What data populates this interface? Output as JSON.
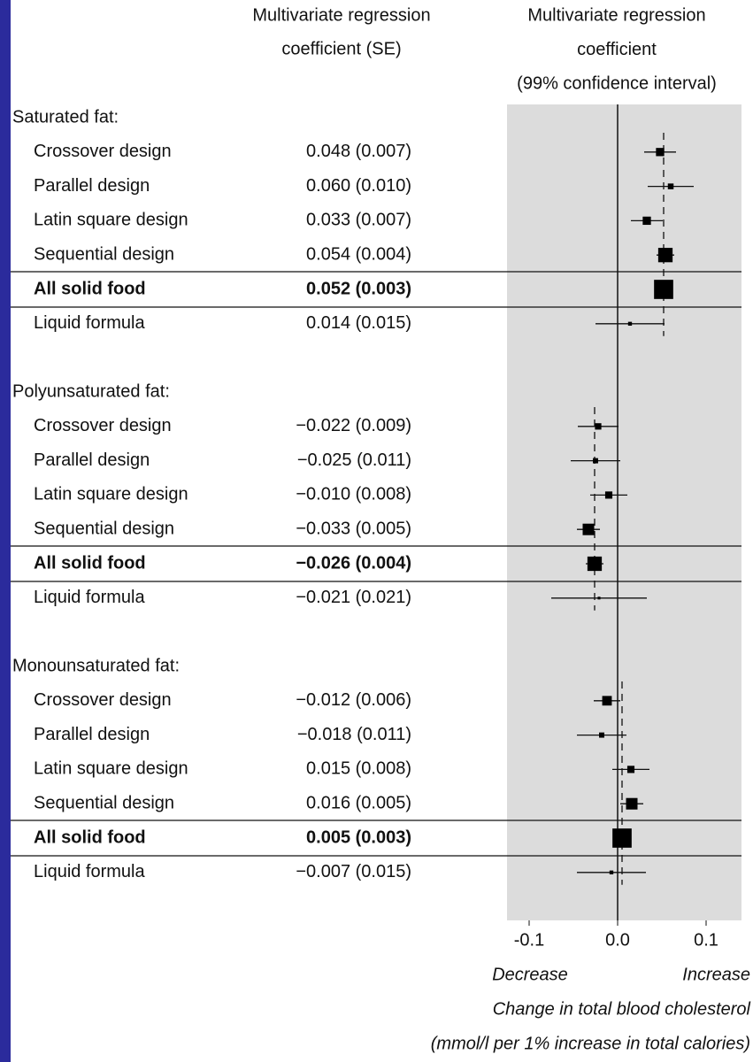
{
  "chart_data": {
    "type": "forest",
    "header_left": [
      "Multivariate regression",
      "coefficient (SE)"
    ],
    "header_right": [
      "Multivariate regression",
      "coefficient",
      "(99% confidence interval)"
    ],
    "bold_row": 4,
    "groups": [
      {
        "name": "Saturated fat:",
        "categories": [
          "Crossover design",
          "Parallel design",
          "Latin square design",
          "Sequential design",
          "All solid food",
          "Liquid formula"
        ],
        "values": [
          0.048,
          0.06,
          0.033,
          0.054,
          0.052,
          0.014
        ],
        "se": [
          0.007,
          0.01,
          0.007,
          0.004,
          0.003,
          0.015
        ],
        "value_labels": [
          "0.048 (0.007)",
          "0.060 (0.010)",
          "0.033 (0.007)",
          "0.054 (0.004)",
          "0.052 (0.003)",
          "0.014 (0.015)"
        ],
        "ci_low": [
          0.03,
          0.034,
          0.015,
          0.044,
          0.044,
          -0.025
        ],
        "ci_high": [
          0.066,
          0.086,
          0.051,
          0.064,
          0.06,
          0.053
        ]
      },
      {
        "name": "Polyunsaturated fat:",
        "categories": [
          "Crossover design",
          "Parallel design",
          "Latin square design",
          "Sequential design",
          "All solid food",
          "Liquid formula"
        ],
        "values": [
          -0.022,
          -0.025,
          -0.01,
          -0.033,
          -0.026,
          -0.021
        ],
        "se": [
          0.009,
          0.011,
          0.008,
          0.005,
          0.004,
          0.021
        ],
        "value_labels": [
          "−0.022 (0.009)",
          "−0.025 (0.011)",
          "−0.010 (0.008)",
          "−0.033 (0.005)",
          "−0.026 (0.004)",
          "−0.021 (0.021)"
        ],
        "ci_low": [
          -0.045,
          -0.053,
          -0.031,
          -0.046,
          -0.036,
          -0.075
        ],
        "ci_high": [
          0.001,
          0.003,
          0.011,
          -0.02,
          -0.016,
          0.033
        ]
      },
      {
        "name": "Monounsaturated fat:",
        "categories": [
          "Crossover design",
          "Parallel design",
          "Latin square design",
          "Sequential design",
          "All solid food",
          "Liquid formula"
        ],
        "values": [
          -0.012,
          -0.018,
          0.015,
          0.016,
          0.005,
          -0.007
        ],
        "se": [
          0.006,
          0.011,
          0.008,
          0.005,
          0.003,
          0.015
        ],
        "value_labels": [
          "−0.012 (0.006)",
          "−0.018 (0.011)",
          "0.015 (0.008)",
          "0.016 (0.005)",
          "0.005 (0.003)",
          "−0.007 (0.015)"
        ],
        "ci_low": [
          -0.027,
          -0.046,
          -0.006,
          0.003,
          -0.003,
          -0.046
        ],
        "ci_high": [
          0.003,
          0.01,
          0.036,
          0.029,
          0.013,
          0.032
        ]
      }
    ],
    "xlim": [
      -0.125,
      0.14
    ],
    "xticks": [
      -0.1,
      {
        "value": 0,
        "label": "0.0"
      },
      0.1
    ],
    "direction_labels": [
      "Decrease",
      "Increase"
    ],
    "xlabel": [
      "Change in total blood cholesterol",
      "(mmol/l per 1% increase in total calories)"
    ],
    "panel_color": "#dcdcdc",
    "marker_color": "#000000"
  }
}
